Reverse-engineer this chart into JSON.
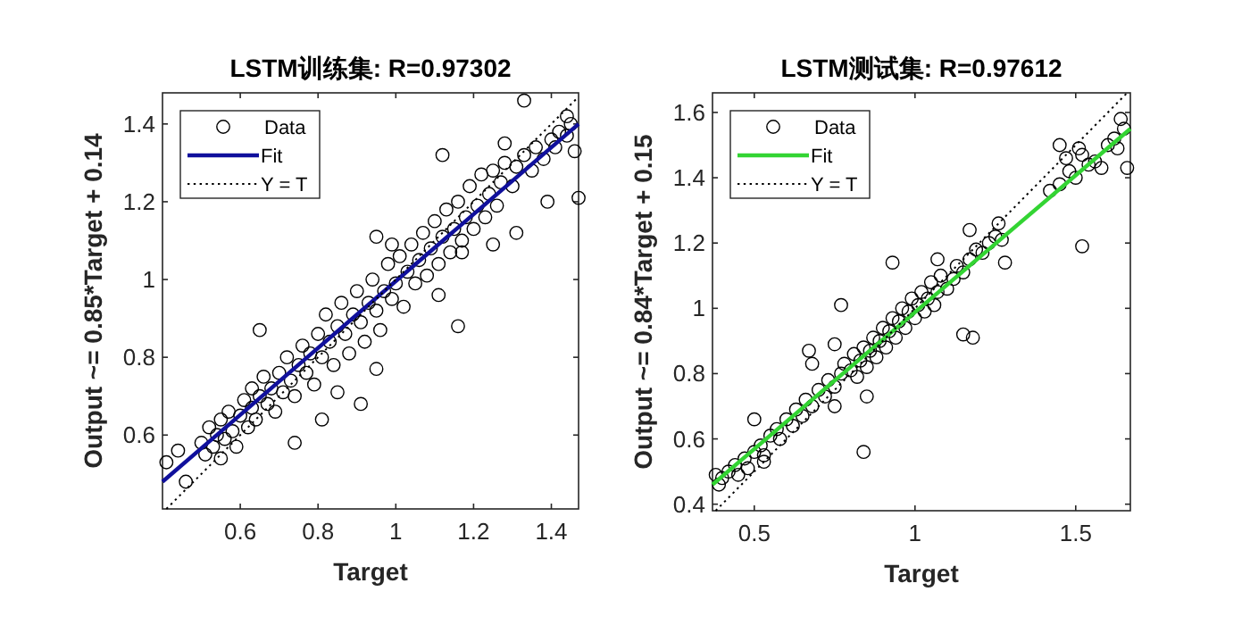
{
  "chart_data": [
    {
      "type": "scatter",
      "title": "LSTM训练集: R=0.97302",
      "xlabel": "Target",
      "ylabel": "Output ~= 0.85*Target + 0.14",
      "xlim": [
        0.4,
        1.47
      ],
      "ylim": [
        0.41,
        1.48
      ],
      "xticks": [
        0.6,
        0.8,
        1,
        1.2,
        1.4
      ],
      "yticks": [
        0.6,
        0.8,
        1,
        1.2,
        1.4
      ],
      "legend": "top left",
      "series": [
        {
          "name": "Data",
          "marker": "circle",
          "color": "#000000",
          "x": [
            0.5,
            0.51,
            0.52,
            0.53,
            0.54,
            0.55,
            0.55,
            0.56,
            0.57,
            0.58,
            0.59,
            0.6,
            0.61,
            0.62,
            0.63,
            0.63,
            0.64,
            0.65,
            0.66,
            0.67,
            0.68,
            0.69,
            0.7,
            0.71,
            0.72,
            0.73,
            0.74,
            0.75,
            0.76,
            0.77,
            0.78,
            0.79,
            0.8,
            0.81,
            0.82,
            0.83,
            0.84,
            0.85,
            0.86,
            0.87,
            0.88,
            0.89,
            0.9,
            0.91,
            0.92,
            0.93,
            0.94,
            0.95,
            0.96,
            0.97,
            0.98,
            0.99,
            1.0,
            1.01,
            1.02,
            1.03,
            1.04,
            1.05,
            1.06,
            1.07,
            1.08,
            1.09,
            1.1,
            1.11,
            1.12,
            1.13,
            1.14,
            1.15,
            1.16,
            1.17,
            1.18,
            1.19,
            1.2,
            1.21,
            1.22,
            1.23,
            1.24,
            1.25,
            1.26,
            1.27,
            1.28,
            1.3,
            1.31,
            1.33,
            1.35,
            1.36,
            1.38,
            1.4,
            1.42,
            1.44,
            1.45,
            1.33,
            1.47,
            1.39,
            1.31,
            1.25,
            1.16,
            1.12,
            0.91,
            0.95,
            0.81,
            0.74,
            0.65,
            0.41,
            0.44,
            0.46,
            0.85,
            1.17,
            1.28,
            0.95,
            0.99,
            1.11,
            1.46,
            1.41,
            1.44
          ],
          "values": [
            0.58,
            0.55,
            0.62,
            0.57,
            0.6,
            0.64,
            0.54,
            0.59,
            0.66,
            0.61,
            0.57,
            0.65,
            0.69,
            0.62,
            0.67,
            0.72,
            0.64,
            0.7,
            0.75,
            0.68,
            0.72,
            0.66,
            0.76,
            0.71,
            0.8,
            0.74,
            0.7,
            0.78,
            0.83,
            0.76,
            0.81,
            0.73,
            0.86,
            0.8,
            0.91,
            0.84,
            0.78,
            0.88,
            0.94,
            0.86,
            0.81,
            0.91,
            0.97,
            0.89,
            0.84,
            0.94,
            1.0,
            0.92,
            0.87,
            0.97,
            1.04,
            0.95,
            0.99,
            1.06,
            0.93,
            1.02,
            1.09,
            0.99,
            1.05,
            1.12,
            1.01,
            1.08,
            1.15,
            1.04,
            1.11,
            1.18,
            1.07,
            1.13,
            1.2,
            1.1,
            1.16,
            1.24,
            1.13,
            1.19,
            1.27,
            1.16,
            1.22,
            1.28,
            1.19,
            1.25,
            1.3,
            1.24,
            1.29,
            1.32,
            1.28,
            1.34,
            1.31,
            1.36,
            1.38,
            1.37,
            1.4,
            1.46,
            1.21,
            1.2,
            1.12,
            1.09,
            0.88,
            1.32,
            0.68,
            0.77,
            0.64,
            0.58,
            0.87,
            0.53,
            0.56,
            0.48,
            0.71,
            1.07,
            1.35,
            1.11,
            1.09,
            0.96,
            1.33,
            1.34,
            1.42
          ]
        },
        {
          "name": "Fit",
          "type": "line",
          "line_style": "solid",
          "color": "#10109c",
          "x": [
            0.4,
            1.47
          ],
          "values": [
            0.48,
            1.4
          ]
        },
        {
          "name": "Y = T",
          "type": "line",
          "line_style": "dotted",
          "color": "#000000",
          "x": [
            0.41,
            1.47
          ],
          "values": [
            0.41,
            1.47
          ]
        }
      ]
    },
    {
      "type": "scatter",
      "title": "LSTM测试集: R=0.97612",
      "xlabel": "Target",
      "ylabel": "Output ~= 0.84*Target + 0.15",
      "xlim": [
        0.37,
        1.67
      ],
      "ylim": [
        0.38,
        1.66
      ],
      "xticks": [
        0.5,
        1,
        1.5
      ],
      "yticks": [
        0.4,
        0.6,
        0.8,
        1,
        1.2,
        1.4,
        1.6
      ],
      "legend": "top left",
      "series": [
        {
          "name": "Data",
          "marker": "circle",
          "color": "#000000",
          "x": [
            0.4,
            0.42,
            0.44,
            0.45,
            0.47,
            0.48,
            0.5,
            0.52,
            0.53,
            0.55,
            0.57,
            0.58,
            0.6,
            0.62,
            0.63,
            0.65,
            0.66,
            0.68,
            0.7,
            0.72,
            0.73,
            0.75,
            0.77,
            0.78,
            0.8,
            0.81,
            0.82,
            0.83,
            0.84,
            0.85,
            0.86,
            0.87,
            0.88,
            0.89,
            0.9,
            0.91,
            0.92,
            0.93,
            0.94,
            0.95,
            0.96,
            0.97,
            0.98,
            0.99,
            1.0,
            1.01,
            1.02,
            1.03,
            1.04,
            1.05,
            1.06,
            1.07,
            1.08,
            1.1,
            1.12,
            1.13,
            1.15,
            1.17,
            1.19,
            1.21,
            1.23,
            1.25,
            1.27,
            1.42,
            1.45,
            1.48,
            1.5,
            1.52,
            1.54,
            1.56,
            1.58,
            1.6,
            1.62,
            1.63,
            1.65,
            1.47,
            1.51,
            1.66,
            1.52,
            1.64,
            1.45,
            0.84,
            0.77,
            0.93,
            0.67,
            1.15,
            1.18,
            1.28,
            1.26,
            1.17,
            1.07,
            0.75,
            0.68,
            0.75,
            0.85,
            0.53,
            0.5,
            0.38,
            0.39
          ],
          "values": [
            0.48,
            0.5,
            0.52,
            0.49,
            0.54,
            0.51,
            0.56,
            0.58,
            0.55,
            0.61,
            0.63,
            0.6,
            0.66,
            0.64,
            0.69,
            0.67,
            0.72,
            0.7,
            0.75,
            0.73,
            0.78,
            0.76,
            0.8,
            0.83,
            0.81,
            0.86,
            0.79,
            0.84,
            0.88,
            0.82,
            0.87,
            0.91,
            0.85,
            0.9,
            0.94,
            0.88,
            0.93,
            0.97,
            0.91,
            0.96,
            1.0,
            0.94,
            0.99,
            1.03,
            0.97,
            1.01,
            1.05,
            0.99,
            1.03,
            1.08,
            1.01,
            1.05,
            1.1,
            1.06,
            1.09,
            1.13,
            1.11,
            1.15,
            1.18,
            1.17,
            1.2,
            1.22,
            1.21,
            1.36,
            1.38,
            1.42,
            1.4,
            1.47,
            1.44,
            1.45,
            1.43,
            1.5,
            1.52,
            1.49,
            1.55,
            1.46,
            1.49,
            1.43,
            1.19,
            1.58,
            1.5,
            0.56,
            1.01,
            1.14,
            0.87,
            0.92,
            0.91,
            1.14,
            1.26,
            1.24,
            1.15,
            0.89,
            0.83,
            0.7,
            0.73,
            0.53,
            0.66,
            0.49,
            0.46
          ]
        },
        {
          "name": "Fit",
          "type": "line",
          "line_style": "solid",
          "color": "#33d433",
          "x": [
            0.37,
            1.67
          ],
          "values": [
            0.46,
            1.55
          ]
        },
        {
          "name": "Y = T",
          "type": "line",
          "line_style": "dotted",
          "color": "#000000",
          "x": [
            0.38,
            1.66
          ],
          "values": [
            0.38,
            1.66
          ]
        }
      ]
    }
  ]
}
